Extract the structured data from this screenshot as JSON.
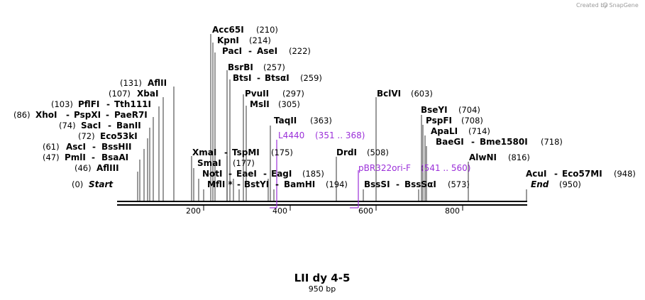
{
  "credit": "Created by SnapGene",
  "title": "LII dy 4-5",
  "length_label": "950 bp",
  "ticks": [
    "200",
    "400",
    "600",
    "800"
  ],
  "start": {
    "name": "Start",
    "pos": "(0)"
  },
  "end": {
    "name": "End",
    "pos": "(950)"
  },
  "left_labels": [
    {
      "pos": "(46)",
      "names": [
        "AflIII"
      ]
    },
    {
      "pos": "(47)",
      "names": [
        "PmlI",
        "BsaAI"
      ]
    },
    {
      "pos": "(61)",
      "names": [
        "AscI",
        "BssHII"
      ]
    },
    {
      "pos": "(72)",
      "names": [
        "Eco53kI"
      ]
    },
    {
      "pos": "(74)",
      "names": [
        "SacI",
        "BanII"
      ]
    },
    {
      "pos": "(86)",
      "names": [
        "XhoI",
        "PspXI",
        "PaeR7I"
      ]
    },
    {
      "pos": "(103)",
      "names": [
        "PflFI",
        "Tth111I"
      ]
    },
    {
      "pos": "(107)",
      "names": [
        "XbaI"
      ]
    },
    {
      "pos": "(131)",
      "names": [
        "AflII"
      ]
    }
  ],
  "right_labels": [
    {
      "names": [
        "Acc65I"
      ],
      "pos": "(210)"
    },
    {
      "names": [
        "KpnI"
      ],
      "pos": "(214)"
    },
    {
      "names": [
        "PacI",
        "AseI"
      ],
      "pos": "(222)"
    },
    {
      "names": [
        "BsrBI"
      ],
      "pos": "(257)"
    },
    {
      "names": [
        "BtsI",
        "BtsαI"
      ],
      "pos": "(259)"
    },
    {
      "names": [
        "PvuII"
      ],
      "pos": "(297)"
    },
    {
      "names": [
        "MslI"
      ],
      "pos": "(305)"
    },
    {
      "names": [
        "TaqII"
      ],
      "pos": "(363)"
    },
    {
      "names": [
        "XmaI",
        "TspMI"
      ],
      "pos": "(175)"
    },
    {
      "names": [
        "SmaI"
      ],
      "pos": "(177)"
    },
    {
      "names": [
        "NotI",
        "EaeI",
        "EagI"
      ],
      "pos": "(185)"
    },
    {
      "names": [
        "MflI *",
        "BstYI",
        "BamHI"
      ],
      "pos": "(194)"
    },
    {
      "names": [
        "DrdI"
      ],
      "pos": "(508)"
    },
    {
      "names": [
        "BclVI"
      ],
      "pos": "(603)"
    },
    {
      "names": [
        "BseYI"
      ],
      "pos": "(704)"
    },
    {
      "names": [
        "PspFI"
      ],
      "pos": "(708)"
    },
    {
      "names": [
        "ApaLI"
      ],
      "pos": "(714)"
    },
    {
      "names": [
        "BaeGI",
        "Bme1580I"
      ],
      "pos": "(718)"
    },
    {
      "names": [
        "AlwNI"
      ],
      "pos": "(816)"
    },
    {
      "names": [
        "BssSI",
        "BssSαI"
      ],
      "pos": "(573)"
    },
    {
      "names": [
        "AcuI",
        "Eco57MI"
      ],
      "pos": "(948)"
    }
  ],
  "primers": [
    {
      "name": "L4440",
      "range": "(351 .. 368)"
    },
    {
      "name": "pBR322ori-F",
      "range": "(541 .. 560)"
    }
  ],
  "colors": {
    "primer": "#9b30d9",
    "line": "#000000",
    "credit": "#9a9a9a"
  }
}
